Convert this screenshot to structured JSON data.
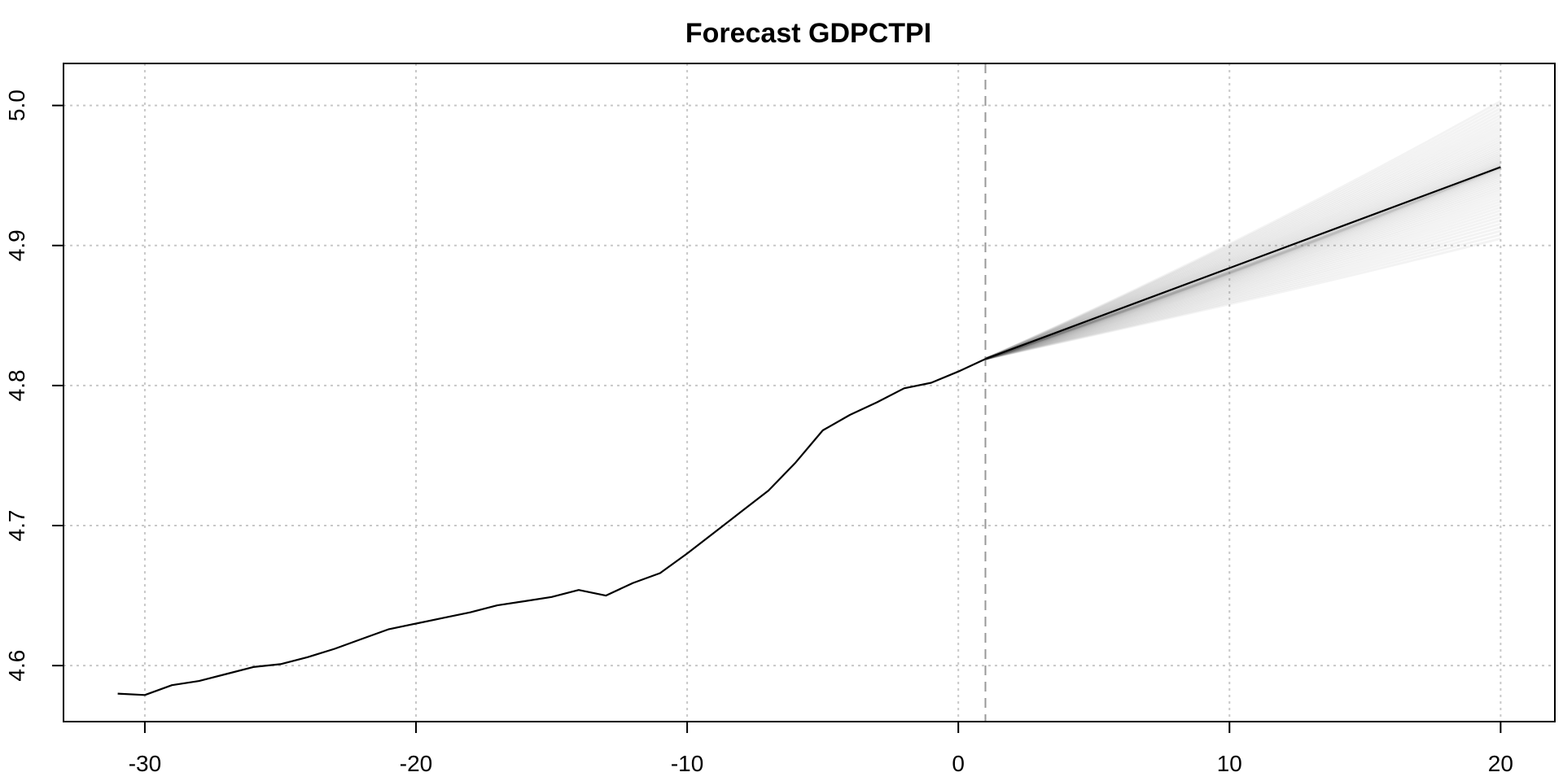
{
  "chart_data": {
    "type": "line",
    "title": "Forecast GDPCTPI",
    "xlabel": "",
    "ylabel": "",
    "xlim": [
      -33,
      22
    ],
    "ylim": [
      4.56,
      5.03
    ],
    "x_ticks": [
      -30,
      -20,
      -10,
      0,
      10,
      20
    ],
    "x_tick_labels": [
      "-30",
      "-20",
      "-10",
      "0",
      "10",
      "20"
    ],
    "y_ticks": [
      4.6,
      4.7,
      4.8,
      4.9,
      5.0
    ],
    "y_tick_labels": [
      "4.6",
      "4.7",
      "4.8",
      "4.9",
      "5.0"
    ],
    "grid": true,
    "forecast_start_line": 1,
    "history": {
      "x": [
        -31,
        -30,
        -29,
        -28,
        -27,
        -26,
        -25,
        -24,
        -23,
        -22,
        -21,
        -20,
        -19,
        -18,
        -17,
        -16,
        -15,
        -14,
        -13,
        -12,
        -11,
        -10,
        -9,
        -8,
        -7,
        -6,
        -5,
        -4,
        -3,
        -2,
        -1,
        0,
        1
      ],
      "y": [
        4.58,
        4.579,
        4.586,
        4.589,
        4.594,
        4.599,
        4.601,
        4.606,
        4.612,
        4.619,
        4.626,
        4.63,
        4.634,
        4.638,
        4.643,
        4.646,
        4.649,
        4.654,
        4.65,
        4.659,
        4.666,
        4.68,
        4.695,
        4.71,
        4.725,
        4.745,
        4.768,
        4.779,
        4.788,
        4.798,
        4.802,
        4.81,
        4.819
      ]
    },
    "forecast_median": {
      "x": [
        1,
        20
      ],
      "y": [
        4.819,
        4.956
      ]
    },
    "forecast_fan": {
      "x_start": 1,
      "x_end": 20,
      "start_value": 4.819,
      "end_upper": 5.003,
      "end_lower": 4.905
    },
    "colors": {
      "line": "#000000",
      "fan": "#555555",
      "grid": "#c8c8c8",
      "vline": "#999999"
    }
  }
}
